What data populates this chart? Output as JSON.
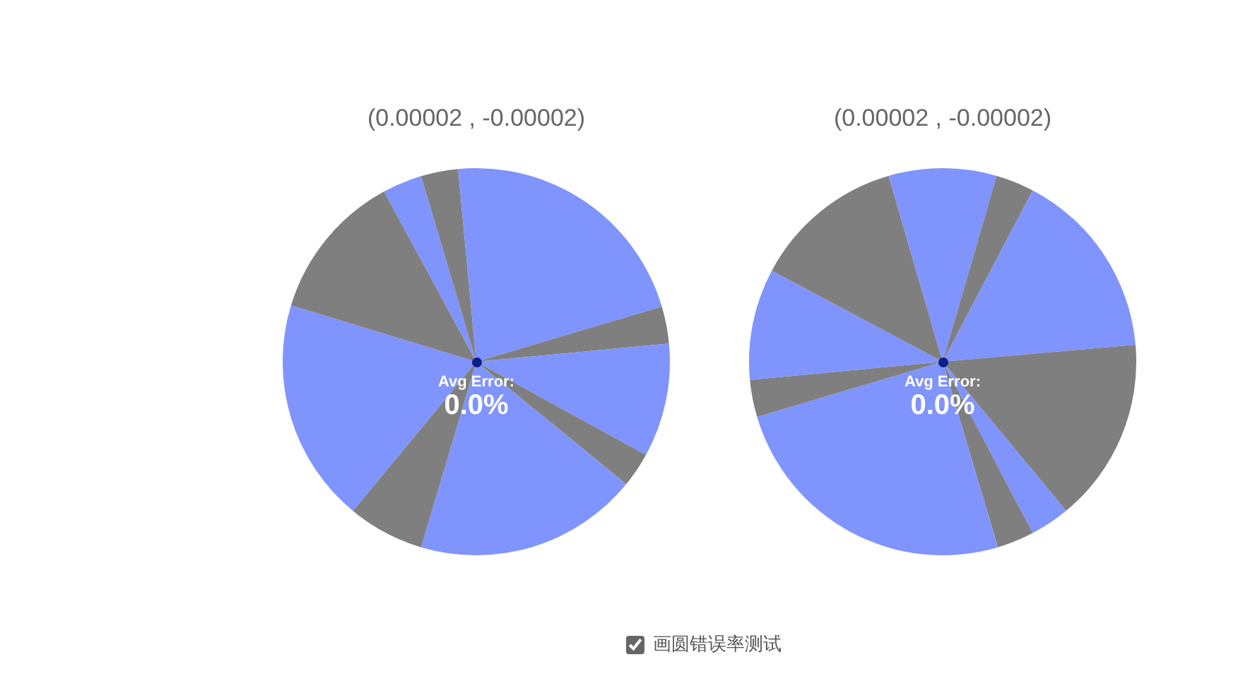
{
  "chart_data": [
    {
      "type": "pie",
      "title": "(0.00002 , -0.00002)",
      "categories": [
        null,
        null,
        null,
        null,
        null,
        null,
        null,
        null,
        null,
        null,
        null
      ],
      "values": [
        20.4,
        3.1,
        9.5,
        2.9,
        18.7,
        6.4,
        18.7,
        12.4,
        3.3,
        3.1,
        1.5
      ],
      "colors": [
        "#8094fe",
        "#7f7f7f",
        "#8094fe",
        "#7f7f7f",
        "#8094fe",
        "#7f7f7f",
        "#8094fe",
        "#7f7f7f",
        "#8094fe",
        "#7f7f7f",
        "#8094fe"
      ],
      "annotations": [
        "Avg Error:",
        "0.0%"
      ]
    },
    {
      "type": "pie",
      "title": "(0.00002 , -0.00002)",
      "categories": [
        null,
        null,
        null,
        null,
        null,
        null,
        null,
        null,
        null,
        null,
        null
      ],
      "values": [
        4.5,
        3.2,
        15.9,
        15.4,
        3.3,
        3.1,
        25.0,
        3.1,
        9.3,
        12.7,
        4.5
      ],
      "colors": [
        "#8094fe",
        "#7f7f7f",
        "#8094fe",
        "#7f7f7f",
        "#8094fe",
        "#7f7f7f",
        "#8094fe",
        "#7f7f7f",
        "#8094fe",
        "#7f7f7f",
        "#8094fe"
      ],
      "annotations": [
        "Avg Error:",
        "0.0%"
      ]
    },
    {
      "type": "other",
      "annotations": [
        "画圆错误率测试"
      ]
    }
  ]
}
